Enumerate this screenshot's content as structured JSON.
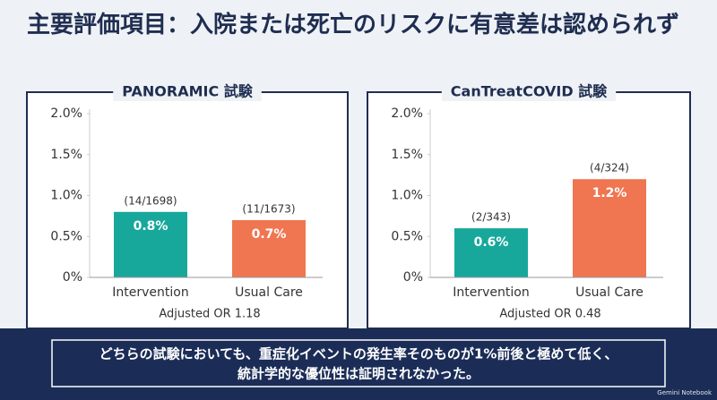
{
  "title": "主要評価項目：入院または死亡のリスクに有意差は認められず",
  "chart_data": [
    {
      "type": "bar",
      "title": "PANORAMIC 試験",
      "categories": [
        "Intervention",
        "Usual Care"
      ],
      "values": [
        0.8,
        0.7
      ],
      "value_labels": [
        "0.8%",
        "0.7%"
      ],
      "annotations": [
        "(14/1698)",
        "(11/1673)"
      ],
      "note": "Adjusted OR 1.18",
      "colors": [
        "#17a89b",
        "#ef7651"
      ],
      "ylim": [
        0,
        2
      ],
      "yticks": [
        {
          "value": 0,
          "label": "0%"
        },
        {
          "value": 0.5,
          "label": "0.5%"
        },
        {
          "value": 1,
          "label": "1.0%"
        },
        {
          "value": 1.5,
          "label": "1.5%"
        },
        {
          "value": 2,
          "label": "2.0%"
        }
      ]
    },
    {
      "type": "bar",
      "title": "CanTreatCOVID 試験",
      "categories": [
        "Intervention",
        "Usual Care"
      ],
      "values": [
        0.6,
        1.2
      ],
      "value_labels": [
        "0.6%",
        "1.2%"
      ],
      "annotations": [
        "(2/343)",
        "(4/324)"
      ],
      "note": "Adjusted OR 0.48",
      "colors": [
        "#17a89b",
        "#ef7651"
      ],
      "ylim": [
        0,
        2
      ],
      "yticks": [
        {
          "value": 0,
          "label": "0%"
        },
        {
          "value": 0.5,
          "label": "0.5%"
        },
        {
          "value": 1,
          "label": "1.0%"
        },
        {
          "value": 1.5,
          "label": "1.5%"
        },
        {
          "value": 2,
          "label": "2.0%"
        }
      ]
    }
  ],
  "footer": {
    "lines": [
      "どちらの試験においても、重症化イベントの発生率そのものが1%前後と極めて低く、",
      "統計学的な優位性は証明されなかった。"
    ]
  },
  "watermark": "Gemini Notebook"
}
